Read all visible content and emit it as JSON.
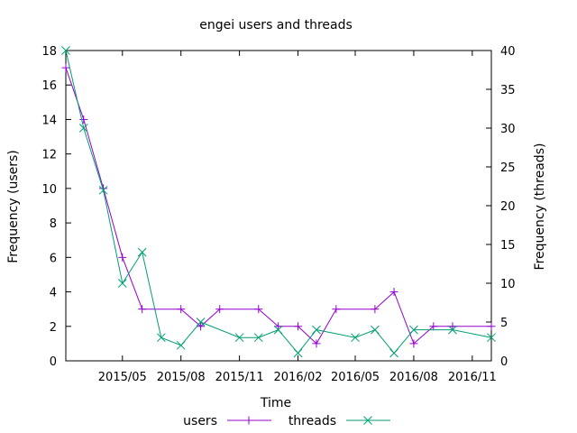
{
  "chart_data": {
    "type": "line",
    "title": "engei users and threads",
    "xlabel": "Time",
    "ylabel_left": "Frequency (users)",
    "ylabel_right": "Frequency (threads)",
    "xlim": [
      "2015-02-01",
      "2016-12-01"
    ],
    "ylim_left": [
      0,
      18
    ],
    "ylim_right": [
      0,
      40
    ],
    "y_left_ticks": [
      "0",
      "2",
      "4",
      "6",
      "8",
      "10",
      "12",
      "14",
      "16",
      "18"
    ],
    "y_right_ticks": [
      "0",
      "5",
      "10",
      "15",
      "20",
      "25",
      "30",
      "35",
      "40"
    ],
    "x_ticks": [
      {
        "date": "2015-05-01",
        "label": "2015/05"
      },
      {
        "date": "2015-08-01",
        "label": "2015/08"
      },
      {
        "date": "2015-11-01",
        "label": "2015/11"
      },
      {
        "date": "2016-02-01",
        "label": "2016/02"
      },
      {
        "date": "2016-05-01",
        "label": "2016/05"
      },
      {
        "date": "2016-08-01",
        "label": "2016/08"
      },
      {
        "date": "2016-11-01",
        "label": "2016/11"
      }
    ],
    "grid": false,
    "legend_position": "bottom",
    "series": [
      {
        "name": "users",
        "axis": "left",
        "color": "#9400d3",
        "marker": "plus",
        "points": [
          {
            "x": "2015-02-01",
            "y": 17
          },
          {
            "x": "2015-03-01",
            "y": 14
          },
          {
            "x": "2015-04-01",
            "y": 10
          },
          {
            "x": "2015-05-01",
            "y": 6
          },
          {
            "x": "2015-06-01",
            "y": 3
          },
          {
            "x": "2015-08-01",
            "y": 3
          },
          {
            "x": "2015-09-01",
            "y": 2
          },
          {
            "x": "2015-10-01",
            "y": 3
          },
          {
            "x": "2015-12-01",
            "y": 3
          },
          {
            "x": "2016-01-01",
            "y": 2
          },
          {
            "x": "2016-02-01",
            "y": 2
          },
          {
            "x": "2016-03-01",
            "y": 1
          },
          {
            "x": "2016-04-01",
            "y": 3
          },
          {
            "x": "2016-06-01",
            "y": 3
          },
          {
            "x": "2016-07-01",
            "y": 4
          },
          {
            "x": "2016-08-01",
            "y": 1
          },
          {
            "x": "2016-09-01",
            "y": 2
          },
          {
            "x": "2016-10-01",
            "y": 2
          },
          {
            "x": "2016-12-01",
            "y": 2
          }
        ]
      },
      {
        "name": "threads",
        "axis": "right",
        "color": "#009e73",
        "marker": "cross",
        "points": [
          {
            "x": "2015-02-01",
            "y": 40
          },
          {
            "x": "2015-03-01",
            "y": 30
          },
          {
            "x": "2015-04-01",
            "y": 22
          },
          {
            "x": "2015-05-01",
            "y": 10
          },
          {
            "x": "2015-06-01",
            "y": 14
          },
          {
            "x": "2015-07-01",
            "y": 3
          },
          {
            "x": "2015-08-01",
            "y": 2
          },
          {
            "x": "2015-09-01",
            "y": 5
          },
          {
            "x": "2015-11-01",
            "y": 3
          },
          {
            "x": "2015-12-01",
            "y": 3
          },
          {
            "x": "2016-01-01",
            "y": 4
          },
          {
            "x": "2016-02-01",
            "y": 1
          },
          {
            "x": "2016-03-01",
            "y": 4
          },
          {
            "x": "2016-05-01",
            "y": 3
          },
          {
            "x": "2016-06-01",
            "y": 4
          },
          {
            "x": "2016-07-01",
            "y": 1
          },
          {
            "x": "2016-08-01",
            "y": 4
          },
          {
            "x": "2016-10-01",
            "y": 4
          },
          {
            "x": "2016-12-01",
            "y": 3
          }
        ]
      }
    ]
  }
}
